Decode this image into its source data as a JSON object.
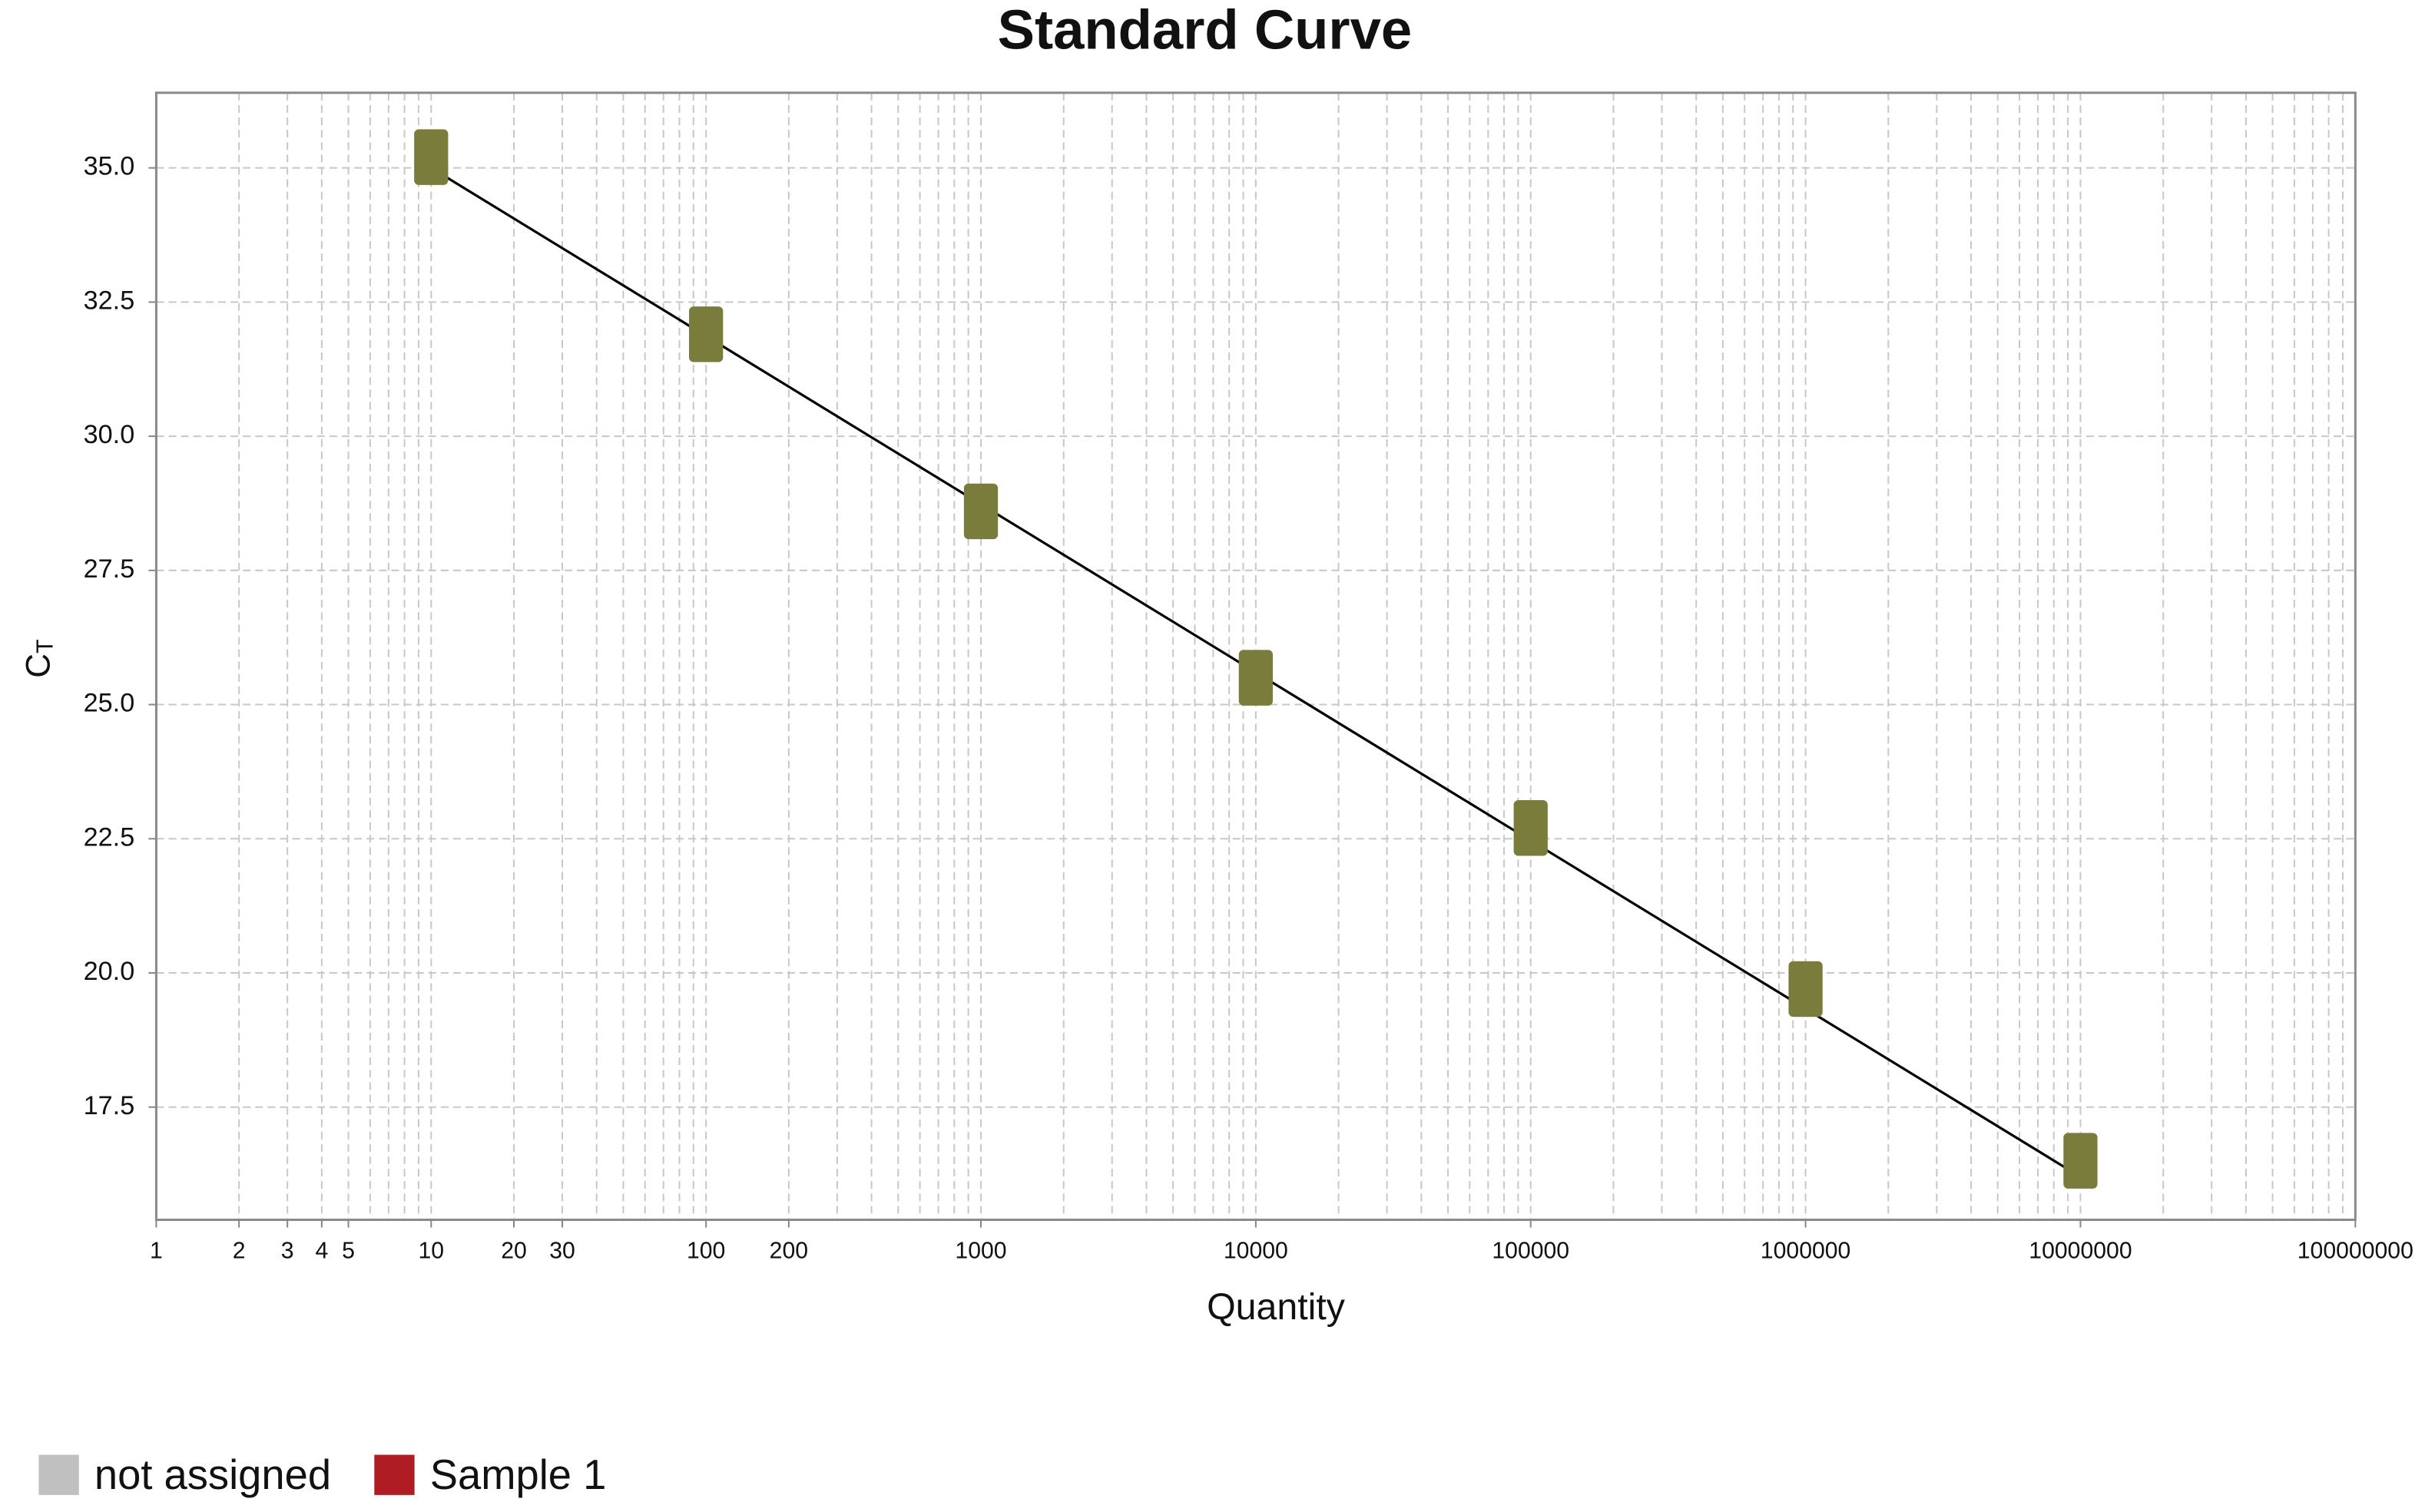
{
  "chart_data": {
    "type": "scatter",
    "title": "Standard Curve",
    "x_label": "Quantity",
    "y_label": "C",
    "y_label_sub": "T",
    "log_x": true,
    "grid": true,
    "xlim": [
      1,
      100000000
    ],
    "ylim": [
      15.4,
      36.4
    ],
    "xticks": [
      1,
      2,
      3,
      4,
      5,
      10,
      20,
      30,
      100,
      200,
      1000,
      10000,
      100000,
      1000000,
      10000000,
      100000000
    ],
    "xminorticks": [
      6,
      7,
      8,
      9,
      40,
      50,
      60,
      70,
      80,
      90,
      300,
      400,
      500,
      600,
      700,
      800,
      900,
      2000,
      3000,
      4000,
      5000,
      6000,
      7000,
      8000,
      9000,
      20000,
      30000,
      40000,
      50000,
      60000,
      70000,
      80000,
      90000,
      200000,
      300000,
      400000,
      500000,
      600000,
      700000,
      800000,
      900000,
      2000000,
      3000000,
      4000000,
      5000000,
      6000000,
      7000000,
      8000000,
      9000000,
      20000000,
      30000000,
      40000000,
      50000000,
      60000000,
      70000000,
      80000000,
      90000000
    ],
    "yticks": [
      17.5,
      {
        "value": 20,
        "label": "20.0"
      },
      22.5,
      {
        "value": 25,
        "label": "25.0"
      },
      27.5,
      {
        "value": 30,
        "label": "30.0"
      },
      32.5,
      {
        "value": 35,
        "label": "35.0"
      }
    ],
    "series": [
      {
        "color": "#7a7c3b",
        "x": [
          10,
          100,
          1000,
          10000,
          100000,
          1000000,
          10000000
        ],
        "values": [
          35.2,
          31.9,
          28.6,
          25.5,
          22.7,
          19.7,
          16.5
        ]
      }
    ],
    "fit": {
      "color": "#000000",
      "x": [
        10,
        10000000
      ],
      "values": [
        35.0,
        16.2
      ]
    },
    "legend": [
      {
        "name": "not assigned",
        "color": "#c0c0c0"
      },
      {
        "name": "Sample 1",
        "color": "#b01c24"
      }
    ]
  }
}
